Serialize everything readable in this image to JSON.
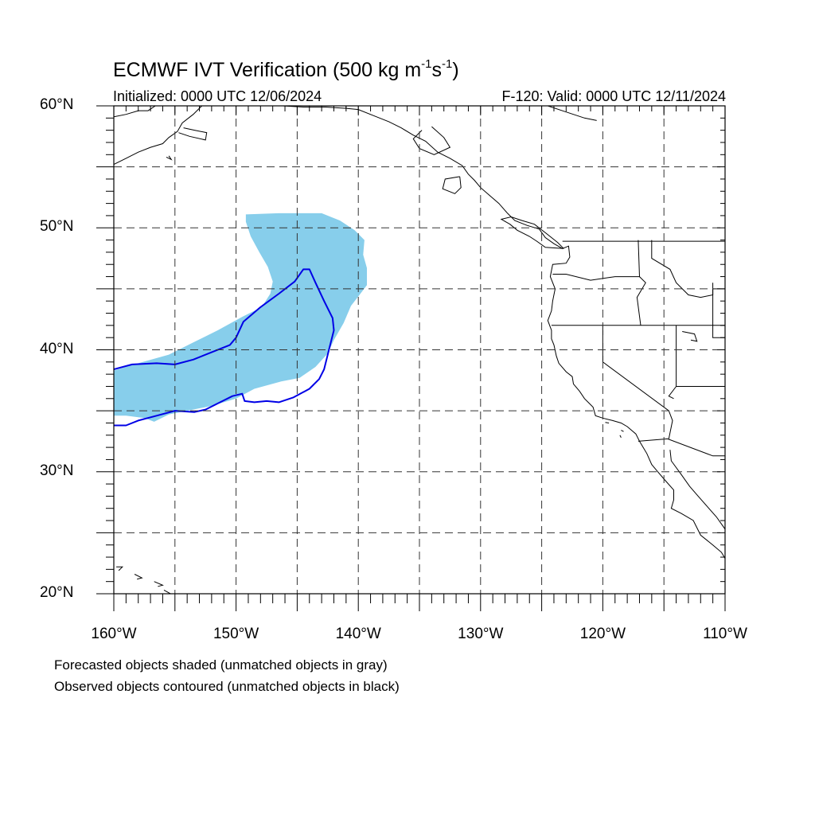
{
  "figure": {
    "title_main": "ECMWF IVT Verification (500 kg m",
    "title_exp1": "-1",
    "title_mid": "s",
    "title_exp2": "-1",
    "title_end": ")",
    "init_text": "Initialized: 0000 UTC 12/06/2024",
    "valid_text": "F-120: Valid: 0000 UTC 12/11/2024",
    "footnote_forecast": "Forecasted objects shaded (unmatched objects in gray)",
    "footnote_observed": "Observed objects contoured (unmatched objects in black)"
  },
  "map": {
    "lon_range": [
      -160,
      -110
    ],
    "lat_range": [
      20,
      60
    ],
    "grid_lon_step": 5,
    "grid_lat_step": 5,
    "lat_labels": [
      {
        "lat": 60,
        "text": "60°N"
      },
      {
        "lat": 50,
        "text": "50°N"
      },
      {
        "lat": 40,
        "text": "40°N"
      },
      {
        "lat": 30,
        "text": "30°N"
      },
      {
        "lat": 20,
        "text": "20°N"
      }
    ],
    "lon_labels": [
      {
        "lon": -160,
        "text": "160°W"
      },
      {
        "lon": -150,
        "text": "150°W"
      },
      {
        "lon": -140,
        "text": "140°W"
      },
      {
        "lon": -130,
        "text": "130°W"
      },
      {
        "lon": -120,
        "text": "120°W"
      },
      {
        "lon": -110,
        "text": "110°W"
      }
    ],
    "colors": {
      "forecast_fill": "#87ceeb",
      "observed_contour": "#0000e6",
      "coastline": "#000000",
      "grid": "#333333"
    },
    "forecast_object": [
      [
        -149.2,
        51.1
      ],
      [
        -146.5,
        51.2
      ],
      [
        -143.0,
        51.2
      ],
      [
        -141.5,
        50.6
      ],
      [
        -140.3,
        49.8
      ],
      [
        -139.5,
        49.0
      ],
      [
        -139.6,
        47.8
      ],
      [
        -139.3,
        46.7
      ],
      [
        -139.3,
        45.3
      ],
      [
        -139.9,
        44.5
      ],
      [
        -140.6,
        43.6
      ],
      [
        -141.2,
        42.2
      ],
      [
        -142.0,
        40.8
      ],
      [
        -142.5,
        39.7
      ],
      [
        -143.5,
        38.6
      ],
      [
        -144.8,
        37.7
      ],
      [
        -146.3,
        37.4
      ],
      [
        -148.5,
        36.8
      ],
      [
        -150.0,
        36.0
      ],
      [
        -152.0,
        35.4
      ],
      [
        -154.0,
        35.0
      ],
      [
        -155.5,
        34.7
      ],
      [
        -156.7,
        34.1
      ],
      [
        -157.5,
        34.4
      ],
      [
        -159.0,
        34.6
      ],
      [
        -160.0,
        34.6
      ],
      [
        -160.0,
        38.3
      ],
      [
        -158.0,
        38.9
      ],
      [
        -155.5,
        39.6
      ],
      [
        -153.5,
        40.6
      ],
      [
        -151.5,
        41.6
      ],
      [
        -149.5,
        42.7
      ],
      [
        -147.9,
        43.5
      ],
      [
        -147.2,
        44.6
      ],
      [
        -147.0,
        45.6
      ],
      [
        -147.4,
        46.8
      ],
      [
        -148.1,
        48.0
      ],
      [
        -148.8,
        49.3
      ],
      [
        -149.2,
        50.5
      ]
    ],
    "observed_object": [
      [
        -160.0,
        38.4
      ],
      [
        -158.5,
        38.8
      ],
      [
        -156.5,
        38.9
      ],
      [
        -155.0,
        38.8
      ],
      [
        -153.5,
        39.2
      ],
      [
        -152.0,
        39.8
      ],
      [
        -150.5,
        40.4
      ],
      [
        -150.0,
        41.0
      ],
      [
        -149.4,
        42.3
      ],
      [
        -148.0,
        43.5
      ],
      [
        -146.5,
        44.6
      ],
      [
        -145.2,
        45.6
      ],
      [
        -144.5,
        46.6
      ],
      [
        -144.0,
        46.6
      ],
      [
        -143.5,
        45.5
      ],
      [
        -142.8,
        44.0
      ],
      [
        -142.1,
        42.6
      ],
      [
        -142.0,
        41.6
      ],
      [
        -142.4,
        40.0
      ],
      [
        -142.8,
        38.4
      ],
      [
        -143.2,
        37.6
      ],
      [
        -144.0,
        36.8
      ],
      [
        -145.3,
        36.1
      ],
      [
        -146.5,
        35.7
      ],
      [
        -147.5,
        35.8
      ],
      [
        -148.5,
        35.7
      ],
      [
        -149.3,
        35.8
      ],
      [
        -149.5,
        36.4
      ],
      [
        -150.3,
        36.2
      ],
      [
        -151.5,
        35.6
      ],
      [
        -152.5,
        35.1
      ],
      [
        -153.4,
        34.9
      ],
      [
        -155.0,
        35.0
      ],
      [
        -156.5,
        34.6
      ],
      [
        -158.0,
        34.2
      ],
      [
        -159.0,
        33.8
      ],
      [
        -160.0,
        33.8
      ]
    ],
    "land_boundaries": [
      [
        [
          -160.0,
          59.1
        ],
        [
          -159.0,
          59.3
        ],
        [
          -158.0,
          59.6
        ],
        [
          -157.2,
          59.6
        ],
        [
          -156.6,
          60.0
        ]
      ],
      [
        [
          -160.0,
          55.2
        ],
        [
          -159.0,
          55.7
        ],
        [
          -158.0,
          56.2
        ],
        [
          -157.0,
          56.6
        ],
        [
          -156.0,
          56.9
        ],
        [
          -155.5,
          57.4
        ],
        [
          -154.8,
          57.9
        ],
        [
          -154.4,
          58.6
        ],
        [
          -153.5,
          59.3
        ],
        [
          -152.8,
          60.0
        ]
      ],
      [
        [
          -154.7,
          57.8
        ],
        [
          -153.8,
          57.5
        ],
        [
          -152.5,
          57.2
        ],
        [
          -152.4,
          57.8
        ],
        [
          -153.4,
          58.0
        ],
        [
          -154.3,
          58.2
        ]
      ],
      [
        [
          -155.7,
          55.8
        ],
        [
          -155.3,
          55.6
        ],
        [
          -155.5,
          55.9
        ]
      ],
      [
        [
          -146.2,
          60.0
        ],
        [
          -144.5,
          59.9
        ],
        [
          -142.7,
          59.9
        ],
        [
          -141.0,
          59.8
        ],
        [
          -140.0,
          59.7
        ],
        [
          -138.5,
          59.1
        ],
        [
          -137.5,
          58.7
        ],
        [
          -136.5,
          58.2
        ],
        [
          -135.5,
          57.6
        ],
        [
          -134.5,
          57.1
        ],
        [
          -133.5,
          56.2
        ],
        [
          -132.5,
          55.7
        ],
        [
          -131.5,
          55.1
        ],
        [
          -131.0,
          54.4
        ],
        [
          -130.5,
          53.9
        ],
        [
          -130.0,
          53.3
        ],
        [
          -129.2,
          52.6
        ],
        [
          -128.5,
          52.0
        ],
        [
          -127.8,
          51.2
        ],
        [
          -127.2,
          50.6
        ],
        [
          -126.2,
          50.2
        ],
        [
          -125.2,
          49.9
        ],
        [
          -124.7,
          49.2
        ],
        [
          -124.0,
          48.7
        ],
        [
          -123.3,
          48.3
        ],
        [
          -122.8,
          48.5
        ],
        [
          -122.7,
          47.6
        ],
        [
          -123.0,
          47.1
        ],
        [
          -124.1,
          47.0
        ],
        [
          -124.3,
          46.0
        ],
        [
          -123.9,
          45.0
        ],
        [
          -124.1,
          44.0
        ],
        [
          -124.2,
          43.2
        ],
        [
          -124.5,
          42.4
        ],
        [
          -124.2,
          41.6
        ],
        [
          -124.2,
          40.9
        ],
        [
          -124.0,
          40.4
        ],
        [
          -123.8,
          39.5
        ],
        [
          -123.6,
          38.9
        ],
        [
          -123.0,
          38.2
        ],
        [
          -122.5,
          37.8
        ],
        [
          -122.4,
          37.2
        ],
        [
          -121.9,
          36.6
        ],
        [
          -121.5,
          36.0
        ],
        [
          -120.8,
          35.3
        ],
        [
          -120.6,
          34.6
        ],
        [
          -120.0,
          34.4
        ],
        [
          -119.2,
          34.2
        ],
        [
          -118.5,
          34.0
        ],
        [
          -118.0,
          33.7
        ],
        [
          -117.3,
          33.1
        ],
        [
          -117.0,
          32.5
        ],
        [
          -116.7,
          32.0
        ],
        [
          -116.4,
          31.5
        ],
        [
          -116.0,
          30.6
        ],
        [
          -115.5,
          30.0
        ],
        [
          -114.9,
          29.3
        ],
        [
          -114.2,
          28.5
        ],
        [
          -114.2,
          27.7
        ],
        [
          -114.4,
          27.0
        ],
        [
          -113.6,
          26.6
        ],
        [
          -112.6,
          26.0
        ],
        [
          -112.0,
          24.8
        ],
        [
          -111.0,
          24.0
        ],
        [
          -110.3,
          23.4
        ],
        [
          -110.0,
          22.9
        ]
      ],
      [
        [
          -114.5,
          31.8
        ],
        [
          -114.4,
          30.9
        ],
        [
          -113.6,
          29.8
        ],
        [
          -112.9,
          28.8
        ],
        [
          -112.2,
          28.0
        ],
        [
          -111.5,
          27.2
        ],
        [
          -110.7,
          26.3
        ],
        [
          -110.0,
          25.3
        ]
      ],
      [
        [
          -123.2,
          48.3
        ],
        [
          -124.7,
          48.4
        ],
        [
          -125.4,
          48.9
        ],
        [
          -126.0,
          49.3
        ],
        [
          -127.0,
          49.8
        ],
        [
          -127.6,
          50.3
        ],
        [
          -128.3,
          50.7
        ],
        [
          -127.5,
          50.9
        ],
        [
          -126.6,
          50.6
        ],
        [
          -125.6,
          50.3
        ],
        [
          -124.7,
          49.6
        ],
        [
          -123.7,
          48.8
        ],
        [
          -123.2,
          48.3
        ]
      ],
      [
        [
          -131.7,
          54.2
        ],
        [
          -132.9,
          54.0
        ],
        [
          -133.1,
          53.2
        ],
        [
          -132.1,
          52.8
        ],
        [
          -131.6,
          53.3
        ],
        [
          -131.7,
          54.2
        ]
      ],
      [
        [
          -134.0,
          58.3
        ],
        [
          -133.0,
          57.4
        ],
        [
          -132.5,
          56.6
        ],
        [
          -133.8,
          56.0
        ],
        [
          -135.0,
          56.5
        ],
        [
          -135.5,
          57.3
        ],
        [
          -134.8,
          58.0
        ]
      ],
      [
        [
          -124.5,
          60.0
        ],
        [
          -123.0,
          59.5
        ],
        [
          -121.5,
          59.0
        ],
        [
          -120.5,
          58.8
        ]
      ],
      [
        [
          -141.0,
          60.0
        ],
        [
          -141.0,
          59.8
        ]
      ],
      [
        [
          -123.3,
          48.9
        ],
        [
          -110.0,
          48.9
        ]
      ],
      [
        [
          -124.2,
          42.0
        ],
        [
          -110.0,
          42.0
        ]
      ],
      [
        [
          -124.1,
          46.2
        ],
        [
          -123.0,
          46.2
        ],
        [
          -121.0,
          45.7
        ],
        [
          -119.0,
          46.0
        ],
        [
          -117.0,
          46.0
        ]
      ],
      [
        [
          -117.1,
          49.0
        ],
        [
          -117.0,
          46.0
        ],
        [
          -116.5,
          45.5
        ],
        [
          -117.2,
          44.3
        ],
        [
          -116.9,
          42.0
        ]
      ],
      [
        [
          -120.0,
          42.0
        ],
        [
          -120.0,
          39.0
        ],
        [
          -114.6,
          35.0
        ],
        [
          -114.3,
          34.2
        ],
        [
          -114.6,
          32.7
        ]
      ],
      [
        [
          -114.0,
          42.0
        ],
        [
          -114.0,
          37.0
        ],
        [
          -114.6,
          36.2
        ],
        [
          -114.2,
          36.0
        ]
      ],
      [
        [
          -116.0,
          49.0
        ],
        [
          -116.0,
          48.0
        ],
        [
          -116.0,
          47.5
        ],
        [
          -114.5,
          46.6
        ],
        [
          -114.0,
          45.5
        ],
        [
          -113.0,
          44.5
        ],
        [
          -112.0,
          44.3
        ],
        [
          -111.0,
          44.5
        ],
        [
          -111.0,
          45.5
        ]
      ],
      [
        [
          -111.0,
          45.0
        ],
        [
          -110.0,
          45.0
        ]
      ],
      [
        [
          -111.0,
          45.0
        ],
        [
          -111.0,
          41.0
        ],
        [
          -110.0,
          41.0
        ]
      ],
      [
        [
          -114.0,
          37.0
        ],
        [
          -110.0,
          37.0
        ]
      ],
      [
        [
          -117.1,
          32.5
        ],
        [
          -114.7,
          32.7
        ],
        [
          -111.0,
          31.3
        ],
        [
          -110.0,
          31.3
        ]
      ],
      [
        [
          -155.9,
          20.3
        ],
        [
          -155.0,
          19.8
        ],
        [
          -155.5,
          20.0
        ]
      ],
      [
        [
          -158.3,
          21.6
        ],
        [
          -157.7,
          21.3
        ],
        [
          -158.1,
          21.2
        ]
      ],
      [
        [
          -159.8,
          22.2
        ],
        [
          -159.3,
          22.2
        ],
        [
          -159.6,
          21.9
        ]
      ],
      [
        [
          -156.7,
          21.0
        ],
        [
          -156.0,
          20.7
        ],
        [
          -156.4,
          20.6
        ]
      ],
      [
        [
          -113.5,
          41.5
        ],
        [
          -112.5,
          41.3
        ],
        [
          -112.3,
          40.7
        ],
        [
          -112.8,
          40.8
        ]
      ],
      [
        [
          -118.5,
          33.4
        ],
        [
          -118.3,
          33.3
        ]
      ],
      [
        [
          -119.5,
          34.0
        ],
        [
          -119.8,
          34.05
        ]
      ],
      [
        [
          -118.6,
          33.0
        ],
        [
          -118.5,
          32.8
        ]
      ]
    ]
  }
}
